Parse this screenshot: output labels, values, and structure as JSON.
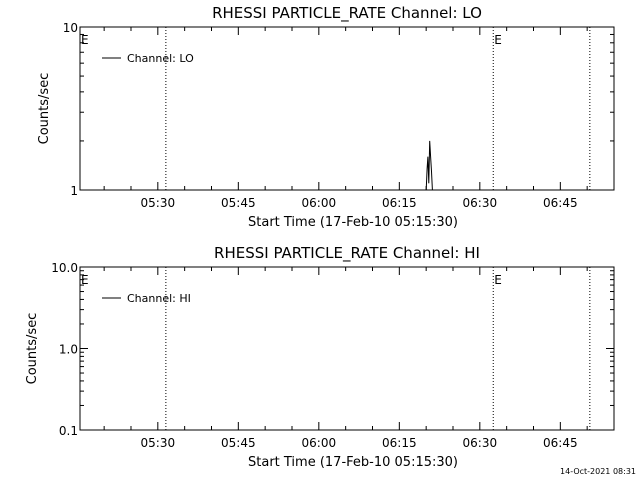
{
  "footer_timestamp": "14-Oct-2021 08:31",
  "chart_data": [
    {
      "type": "line",
      "title": "RHESSI PARTICLE_RATE Channel: LO",
      "xlabel": "Start Time (17-Feb-10 05:15:30)",
      "ylabel": "Counts/sec",
      "y_scale": "log",
      "ylim": [
        1,
        10
      ],
      "y_ticks": [
        {
          "value": 1,
          "label": "1"
        },
        {
          "value": 10,
          "label": "10"
        }
      ],
      "xlim": [
        "05:15:30",
        "06:55:00"
      ],
      "x_ticks": [
        "05:30",
        "05:45",
        "06:00",
        "06:15",
        "06:30",
        "06:45"
      ],
      "event_lines": [
        {
          "time": "05:15:30",
          "label": "E"
        },
        {
          "time": "05:31:30",
          "label": ""
        },
        {
          "time": "06:32:30",
          "label": "E"
        },
        {
          "time": "06:50:30",
          "label": ""
        }
      ],
      "legend": {
        "placement": "top-left",
        "entries": [
          "Channel: LO"
        ]
      },
      "series": [
        {
          "name": "Channel: LO",
          "color": "#000000",
          "points": [
            [
              "06:20:00",
              1.0
            ],
            [
              "06:20:10",
              1.35
            ],
            [
              "06:20:20",
              1.6
            ],
            [
              "06:20:30",
              1.1
            ],
            [
              "06:20:40",
              2.0
            ],
            [
              "06:20:50",
              1.6
            ],
            [
              "06:21:00",
              1.3
            ],
            [
              "06:21:10",
              1.0
            ]
          ]
        }
      ]
    },
    {
      "type": "line",
      "title": "RHESSI PARTICLE_RATE Channel: HI",
      "xlabel": "Start Time (17-Feb-10 05:15:30)",
      "ylabel": "Counts/sec",
      "y_scale": "log",
      "ylim": [
        0.1,
        10
      ],
      "y_ticks": [
        {
          "value": 0.1,
          "label": "0.1"
        },
        {
          "value": 1,
          "label": "1.0"
        },
        {
          "value": 10,
          "label": "10.0"
        }
      ],
      "xlim": [
        "05:15:30",
        "06:55:00"
      ],
      "x_ticks": [
        "05:30",
        "05:45",
        "06:00",
        "06:15",
        "06:30",
        "06:45"
      ],
      "event_lines": [
        {
          "time": "05:15:30",
          "label": "E"
        },
        {
          "time": "05:31:30",
          "label": ""
        },
        {
          "time": "06:32:30",
          "label": "E"
        },
        {
          "time": "06:50:30",
          "label": ""
        }
      ],
      "legend": {
        "placement": "top-left",
        "entries": [
          "Channel: HI"
        ]
      },
      "series": [
        {
          "name": "Channel: HI",
          "color": "#000000",
          "points": []
        }
      ]
    }
  ]
}
